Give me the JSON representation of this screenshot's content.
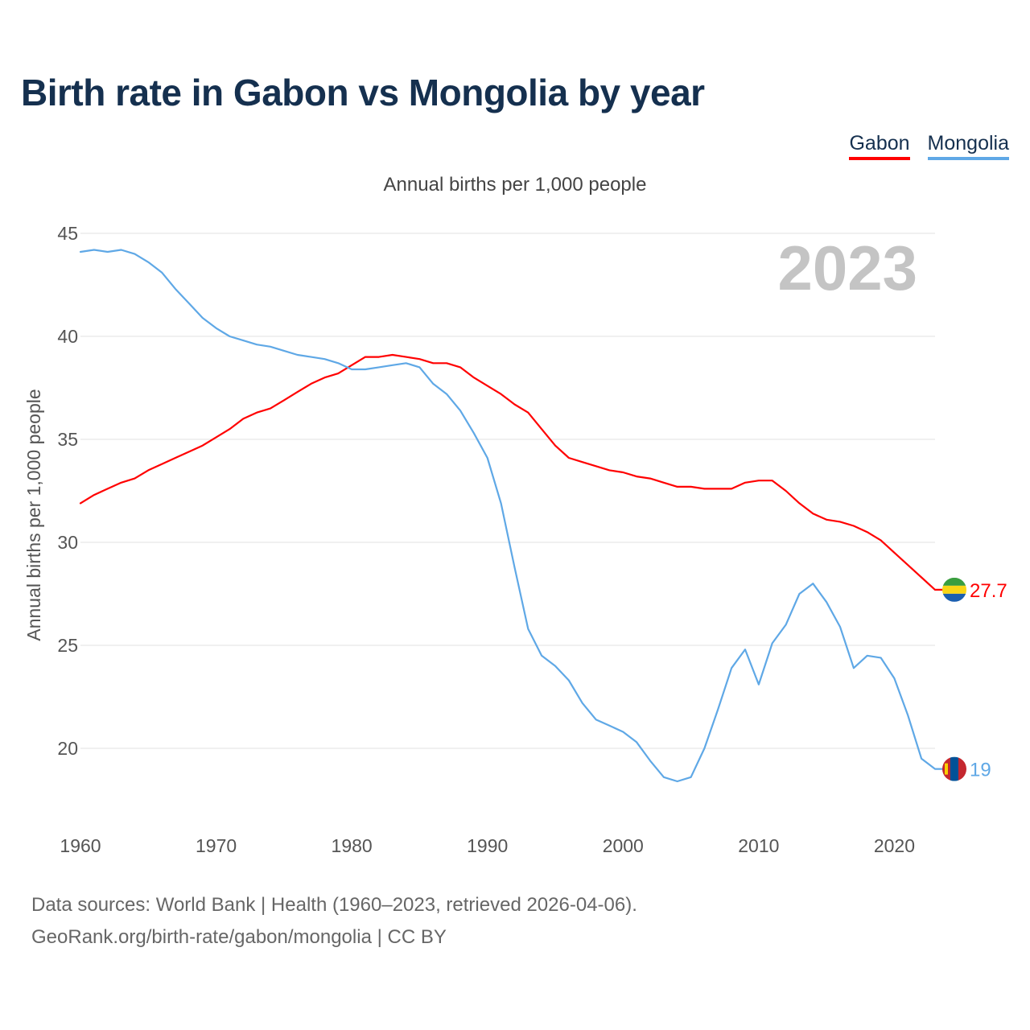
{
  "title": "Birth rate in Gabon vs Mongolia by year",
  "subtitle": "Annual births per 1,000 people",
  "legend": [
    {
      "label": "Gabon",
      "color": "#ff0000"
    },
    {
      "label": "Mongolia",
      "color": "#5fa8e6"
    }
  ],
  "year_watermark": "2023",
  "footer": {
    "line1": "Data sources: World Bank | Health (1960–2023, retrieved 2026-04-06).",
    "line2": "GeoRank.org/birth-rate/gabon/mongolia | CC BY"
  },
  "chart_data": {
    "type": "line",
    "title": "Birth rate in Gabon vs Mongolia by year",
    "xlabel": "",
    "ylabel": "Annual births per 1,000 people",
    "xlim": [
      1960,
      2023
    ],
    "ylim": [
      16.5,
      45
    ],
    "x_ticks": [
      1960,
      1970,
      1980,
      1990,
      2000,
      2010,
      2020
    ],
    "y_ticks": [
      20,
      25,
      30,
      35,
      40,
      45
    ],
    "grid": true,
    "legend_position": "top-right",
    "x": [
      1960,
      1961,
      1962,
      1963,
      1964,
      1965,
      1966,
      1967,
      1968,
      1969,
      1970,
      1971,
      1972,
      1973,
      1974,
      1975,
      1976,
      1977,
      1978,
      1979,
      1980,
      1981,
      1982,
      1983,
      1984,
      1985,
      1986,
      1987,
      1988,
      1989,
      1990,
      1991,
      1992,
      1993,
      1994,
      1995,
      1996,
      1997,
      1998,
      1999,
      2000,
      2001,
      2002,
      2003,
      2004,
      2005,
      2006,
      2007,
      2008,
      2009,
      2010,
      2011,
      2012,
      2013,
      2014,
      2015,
      2016,
      2017,
      2018,
      2019,
      2020,
      2021,
      2022,
      2023
    ],
    "series": [
      {
        "name": "Gabon",
        "color": "#ff0000",
        "end_label": "27.7",
        "values": [
          31.9,
          32.3,
          32.6,
          32.9,
          33.1,
          33.5,
          33.8,
          34.1,
          34.4,
          34.7,
          35.1,
          35.5,
          36.0,
          36.3,
          36.5,
          36.9,
          37.3,
          37.7,
          38.0,
          38.2,
          38.6,
          39.0,
          39.0,
          39.1,
          39.0,
          38.9,
          38.7,
          38.7,
          38.5,
          38.0,
          37.6,
          37.2,
          36.7,
          36.3,
          35.5,
          34.7,
          34.1,
          33.9,
          33.7,
          33.5,
          33.4,
          33.2,
          33.1,
          32.9,
          32.7,
          32.7,
          32.6,
          32.6,
          32.6,
          32.9,
          33.0,
          33.0,
          32.5,
          31.9,
          31.4,
          31.1,
          31.0,
          30.8,
          30.5,
          30.1,
          29.5,
          28.9,
          28.3,
          27.7
        ]
      },
      {
        "name": "Mongolia",
        "color": "#5fa8e6",
        "end_label": "19",
        "values": [
          44.1,
          44.2,
          44.1,
          44.2,
          44.0,
          43.6,
          43.1,
          42.3,
          41.6,
          40.9,
          40.4,
          40.0,
          39.8,
          39.6,
          39.5,
          39.3,
          39.1,
          39.0,
          38.9,
          38.7,
          38.4,
          38.4,
          38.5,
          38.6,
          38.7,
          38.5,
          37.7,
          37.2,
          36.4,
          35.3,
          34.1,
          31.9,
          28.8,
          25.8,
          24.5,
          24.0,
          23.3,
          22.2,
          21.4,
          21.1,
          20.8,
          20.3,
          19.4,
          18.6,
          18.4,
          18.6,
          20.0,
          21.9,
          23.9,
          24.8,
          23.1,
          25.1,
          26.0,
          27.5,
          28.0,
          27.1,
          25.9,
          23.9,
          24.5,
          24.4,
          23.4,
          21.6,
          19.5,
          19.0
        ]
      }
    ]
  }
}
